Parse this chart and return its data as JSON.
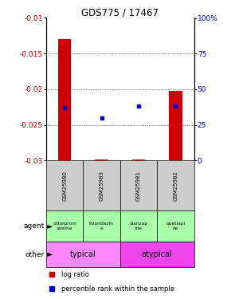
{
  "title": "GDS775 / 17467",
  "samples": [
    "GSM25980",
    "GSM25983",
    "GSM25981",
    "GSM25982"
  ],
  "log_ratios": [
    -0.013,
    -0.0298,
    -0.0298,
    -0.0202
  ],
  "pct_ranks": [
    37,
    30,
    38,
    38
  ],
  "ylim_left": [
    -0.03,
    -0.01
  ],
  "ylim_right": [
    0,
    100
  ],
  "yticks_left": [
    -0.03,
    -0.025,
    -0.02,
    -0.015,
    -0.01
  ],
  "yticks_right": [
    0,
    25,
    50,
    75,
    100
  ],
  "bar_color": "#cc0000",
  "dot_color": "#0000cc",
  "agent_labels": [
    "chlorprom\nazwine",
    "thioridazin\ne",
    "olanzap\nine",
    "quetiapi\nne"
  ],
  "agent_color": "#aaffaa",
  "typical_color": "#ff88ff",
  "atypical_color": "#ee44ee",
  "typical_label": "typical",
  "atypical_label": "atypical",
  "agent_row_label": "agent",
  "other_row_label": "other",
  "legend_bar_label": "log ratio",
  "legend_dot_label": "percentile rank within the sample",
  "tick_label_color_left": "#cc0000",
  "tick_label_color_right": "#0000cc",
  "sample_bg_color": "#cccccc"
}
